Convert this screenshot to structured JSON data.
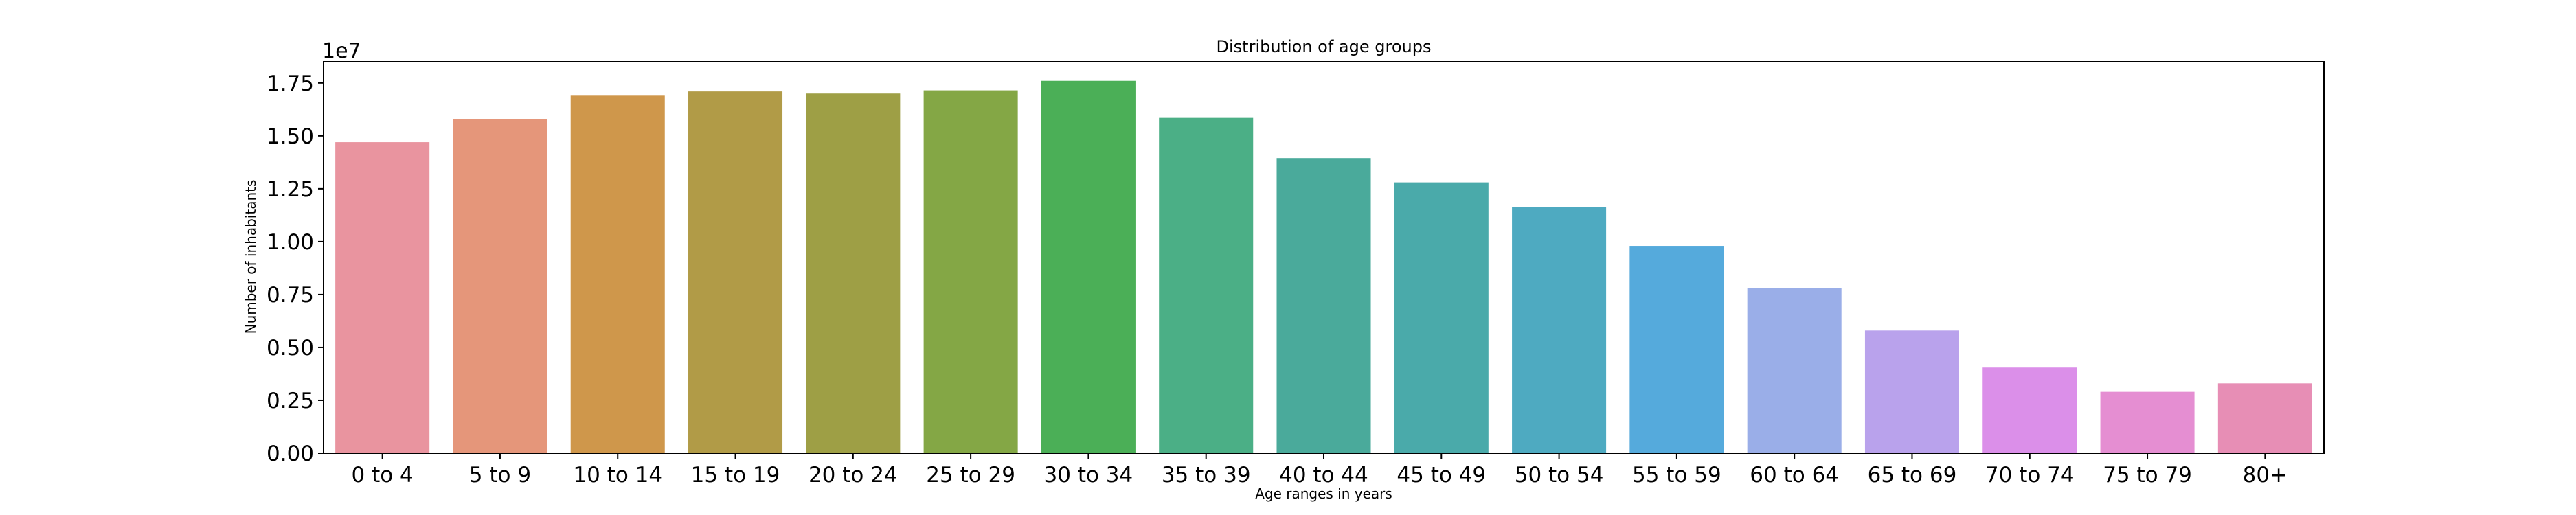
{
  "chart_data": {
    "type": "bar",
    "title": "Distribution of age groups",
    "xlabel": "Age ranges in years",
    "ylabel": "Number of inhabitants",
    "y_offset_label": "1e7",
    "y_scale": 10000000,
    "ylim": [
      0,
      1.85
    ],
    "yticks": [
      0.0,
      0.25,
      0.5,
      0.75,
      1.0,
      1.25,
      1.5,
      1.75
    ],
    "ytick_labels": [
      "0.00",
      "0.25",
      "0.50",
      "0.75",
      "1.00",
      "1.25",
      "1.50",
      "1.75"
    ],
    "grid": false,
    "categories": [
      "0 to 4",
      "5 to 9",
      "10 to 14",
      "15 to 19",
      "20 to 24",
      "25 to 29",
      "30 to 34",
      "35 to 39",
      "40 to 44",
      "45 to 49",
      "50 to 54",
      "55 to 59",
      "60 to 64",
      "65 to 69",
      "70 to 74",
      "75 to 79",
      "80+"
    ],
    "values": [
      14700000,
      15800000,
      16900000,
      17100000,
      17000000,
      17150000,
      17600000,
      15850000,
      13950000,
      12800000,
      11650000,
      9800000,
      7800000,
      5800000,
      4050000,
      2900000,
      3300000
    ],
    "colors": [
      "#e9949f",
      "#e5967a",
      "#cf974b",
      "#b19b47",
      "#9e9f45",
      "#84a745",
      "#4baf57",
      "#4baf86",
      "#4aaa9b",
      "#4aaaaa",
      "#4eaac1",
      "#55aadc",
      "#9aaee8",
      "#b9a2ec",
      "#db8fe9",
      "#e58ed2",
      "#e78eb5"
    ]
  }
}
